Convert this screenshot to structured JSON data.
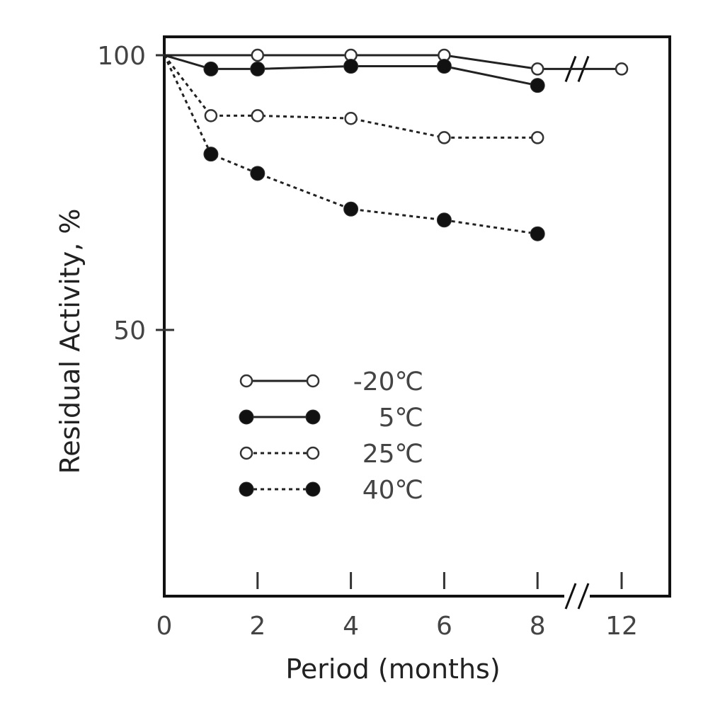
{
  "chart_data": {
    "type": "line",
    "title": "",
    "xlabel": "Period (months)",
    "ylabel": "Residual Activity, %",
    "x_ticks": [
      0,
      2,
      4,
      6,
      8,
      12
    ],
    "y_ticks": [
      50,
      100
    ],
    "ylim": [
      0,
      100
    ],
    "x_axis_break": "between 8 and 12",
    "legend_position": "lower-left",
    "grid": false,
    "series": [
      {
        "name": "-20℃",
        "marker": "open-circle",
        "line_style": "solid",
        "points": [
          [
            0,
            100
          ],
          [
            2,
            100
          ],
          [
            4,
            100
          ],
          [
            6,
            100
          ],
          [
            8,
            97.5
          ],
          [
            12,
            97.5
          ]
        ]
      },
      {
        "name": "5℃",
        "marker": "filled-circle",
        "line_style": "solid",
        "points": [
          [
            0,
            100
          ],
          [
            1,
            97.5
          ],
          [
            2,
            97.5
          ],
          [
            4,
            98
          ],
          [
            6,
            98
          ],
          [
            8,
            94.5
          ]
        ]
      },
      {
        "name": "25℃",
        "marker": "open-circle",
        "line_style": "dotted",
        "points": [
          [
            0,
            100
          ],
          [
            1,
            89
          ],
          [
            2,
            89
          ],
          [
            4,
            88.5
          ],
          [
            6,
            85
          ],
          [
            8,
            85
          ]
        ]
      },
      {
        "name": "40℃",
        "marker": "filled-circle",
        "line_style": "dotted",
        "points": [
          [
            0,
            100
          ],
          [
            1,
            82
          ],
          [
            2,
            78.5
          ],
          [
            4,
            72
          ],
          [
            6,
            70
          ],
          [
            8,
            67.5
          ]
        ]
      }
    ]
  }
}
